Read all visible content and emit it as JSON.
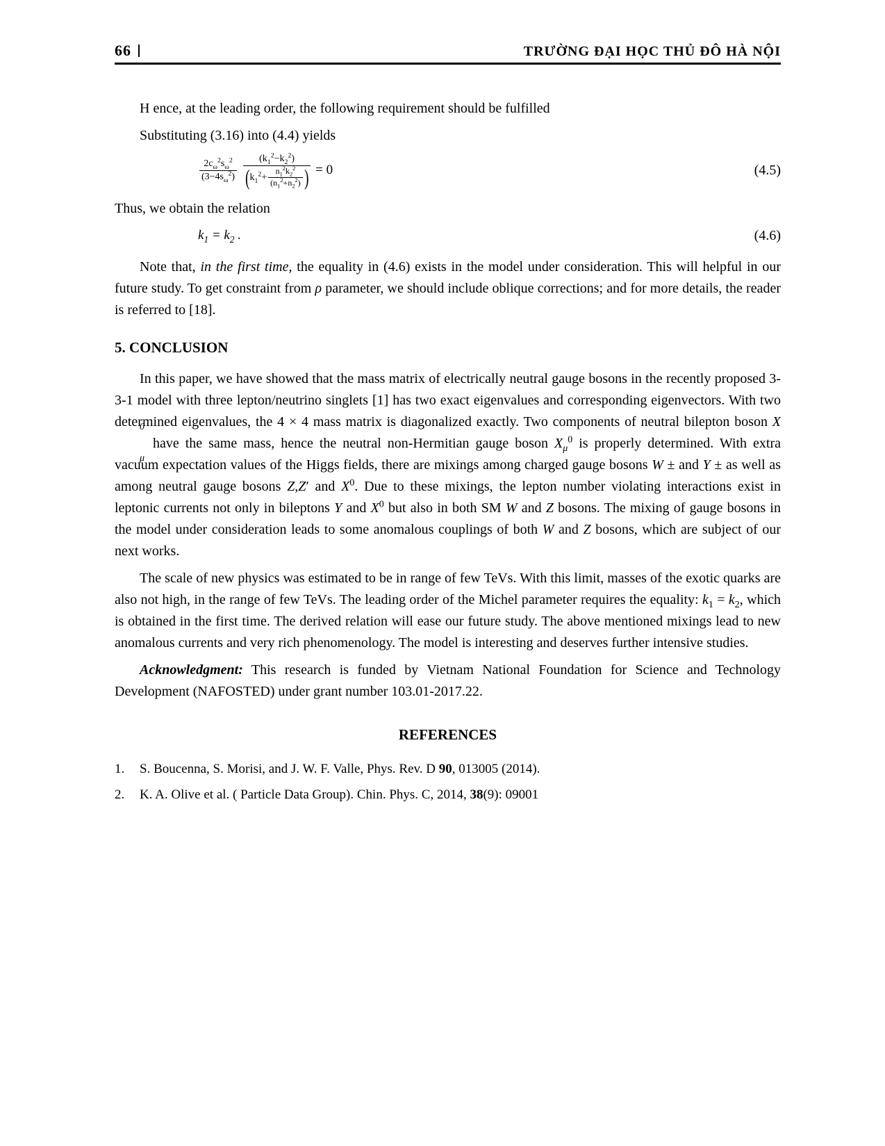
{
  "header": {
    "page_number": "66",
    "journal_title": "TRƯỜNG ĐẠI HỌC THỦ ĐÔ HÀ NỘI"
  },
  "body": {
    "p1": "H ence, at the leading order, the following requirement should be fulfilled",
    "p2": "Substituting (3.16) into (4.4) yields",
    "eq45": {
      "frac1_num_html": "2c<sub>ω</sub><sup>2</sup>s<sub>ω</sub><sup>2</sup>",
      "frac1_den_html": "(3−4s<sub>ω</sub><sup>2</sup>)",
      "frac2_num_html": "(k<sub>1</sub><sup>2</sup>−k<sub>2</sub><sup>2</sup>)",
      "frac2_den_outer_left_html": "k<sub>1</sub><sup>2</sup>+",
      "frac2_den_inner_num_html": "n<sub>1</sub><sup>2</sup>k<sub>2</sub><sup>2</sup>",
      "frac2_den_inner_den_html": "(n<sub>1</sub><sup>2</sup>+n<sub>2</sub><sup>2</sup>)",
      "rhs": " = 0",
      "number": "(4.5)"
    },
    "p3": "Thus, we obtain the relation",
    "eq46": {
      "lhs_html": "k<sub>1</sub> = k<sub>2</sub> .",
      "number": "(4.6)"
    },
    "p4_html": "Note that, <em>in the first time,</em> the equality in (4.6) exists in the model under consideration. This will helpful in our future study. To get constraint from <em>ρ</em> parameter, we should include oblique corrections; and for more details, the reader is referred to [18].",
    "section5_heading": "5. CONCLUSION",
    "p5_html": "In this paper, we have showed that the mass matrix of electrically neutral gauge bosons in the recently proposed 3-3-1 model with three lepton/neutrino singlets [1] has two exact eigenvalues and corresponding eigenvectors. With two determined eigenvalues, the 4 × 4 mass matrix is diagonalized exactly. Two components of neutral bilepton boson <span style=\"font-style:italic\">X</span><span style=\"font-style:italic; position:relative; display:inline-block\"><sup style=\"position:absolute; top:-0.6em; left:0\">0</sup><sub style=\"position:absolute; bottom:-0.4em; left:0\">μ</sub>&nbsp;&nbsp;</span> have the same mass, hence the neutral non-Hermitian gauge boson <em>X<sub>μ</sub></em><sup>0</sup> is properly determined. With extra vacuum expectation values of the Higgs fields, there are mixings among charged gauge bosons <em>W</em> ± and <em>Y</em> ± as well as among neutral gauge bosons <em>Z,Z</em>′ and <em>X</em><sup>0</sup>. Due to these mixings, the lepton number violating interactions exist in leptonic currents not only in bileptons <em>Y</em> and <em>X</em><sup>0</sup> but also in both SM <em>W</em> and <em>Z</em> bosons. The mixing of gauge bosons in the model under consideration leads to some anomalous couplings of both <em>W</em> and <em>Z</em> bosons, which are subject of our next works.",
    "p6_html": "The scale of new physics was estimated to be in range of few TeVs. With this limit, masses of the exotic quarks are also not high, in the range of few TeVs. The leading order of the Michel parameter requires the equality: <em>k</em><sub>1</sub> = <em>k</em><sub>2</sub>, which is obtained in the first time. The derived relation will ease our future study. The above mentioned mixings lead to new anomalous currents and very rich phenomenology. The model is interesting and deserves further intensive studies.",
    "p7_html": "<em><strong>Acknowledgment:</strong></em> This research is funded by Vietnam National Foundation for Science and Technology Development (NAFOSTED) under grant number 103.01-2017.22.",
    "references_heading": "REFERENCES",
    "refs": [
      {
        "num": "1.",
        "text_html": "S. Boucenna, S. Morisi, and J. W. F. Valle, Phys. Rev. D <strong>90</strong>, 013005 (2014)."
      },
      {
        "num": "2.",
        "text_html": "K. A. Olive et al. ( Particle Data Group). Chin. Phys. C, 2014, <strong>38</strong>(9): 09001"
      }
    ]
  },
  "colors": {
    "text": "#000000",
    "background": "#ffffff",
    "rule": "#000000"
  },
  "typography": {
    "body_font": "Times New Roman",
    "body_size_pt": 12,
    "heading_size_pt": 13,
    "header_size_pt": 13
  }
}
